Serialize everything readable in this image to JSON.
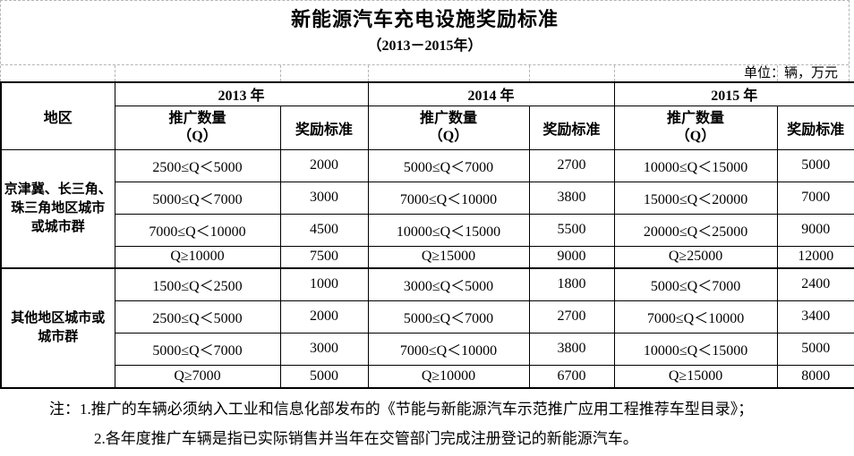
{
  "title": "新能源汽车充电设施奖励标准",
  "subtitle": "（2013－2015年）",
  "unit_label": "单位：辆，万元",
  "table": {
    "region_header": "地区",
    "year_headers": [
      "2013 年",
      "2014 年",
      "2015 年"
    ],
    "quantity_header": {
      "line1": "推广数量",
      "line2": "（Q）"
    },
    "reward_header": "奖励标准",
    "groups": [
      {
        "region": "京津冀、长三角、珠三角地区城市或城市群",
        "region_lines": [
          "京津冀、长三角、",
          "珠三角地区城市",
          "或城市群"
        ],
        "rows": [
          [
            "2500≤Q＜5000",
            "2000",
            "5000≤Q＜7000",
            "2700",
            "10000≤Q＜15000",
            "5000"
          ],
          [
            "5000≤Q＜7000",
            "3000",
            "7000≤Q＜10000",
            "3800",
            "15000≤Q＜20000",
            "7000"
          ],
          [
            "7000≤Q＜10000",
            "4500",
            "10000≤Q＜15000",
            "5500",
            "20000≤Q＜25000",
            "9000"
          ],
          [
            "Q≥10000",
            "7500",
            "Q≥15000",
            "9000",
            "Q≥25000",
            "12000"
          ]
        ]
      },
      {
        "region": "其他地区城市或城市群",
        "region_lines": [
          "其他地区城市或",
          "城市群"
        ],
        "rows": [
          [
            "1500≤Q＜2500",
            "1000",
            "3000≤Q＜5000",
            "1800",
            "5000≤Q＜7000",
            "2400"
          ],
          [
            "2500≤Q＜5000",
            "2000",
            "5000≤Q＜7000",
            "2700",
            "7000≤Q＜10000",
            "3400"
          ],
          [
            "5000≤Q＜7000",
            "3000",
            "7000≤Q＜10000",
            "3800",
            "10000≤Q＜15000",
            "5000"
          ],
          [
            "Q≥7000",
            "5000",
            "Q≥10000",
            "6700",
            "Q≥15000",
            "8000"
          ]
        ]
      }
    ]
  },
  "notes": [
    "注：1.推广的车辆必须纳入工业和信息化部发布的《节能与新能源汽车示范推广应用工程推荐车型目录》；",
    "2.各年度推广车辆是指已实际销售并当年在交管部门完成注册登记的新能源汽车。"
  ],
  "colors": {
    "text": "#000000",
    "table_border": "#000000",
    "grid_dash": "#b5b5b5",
    "background": "#ffffff"
  }
}
